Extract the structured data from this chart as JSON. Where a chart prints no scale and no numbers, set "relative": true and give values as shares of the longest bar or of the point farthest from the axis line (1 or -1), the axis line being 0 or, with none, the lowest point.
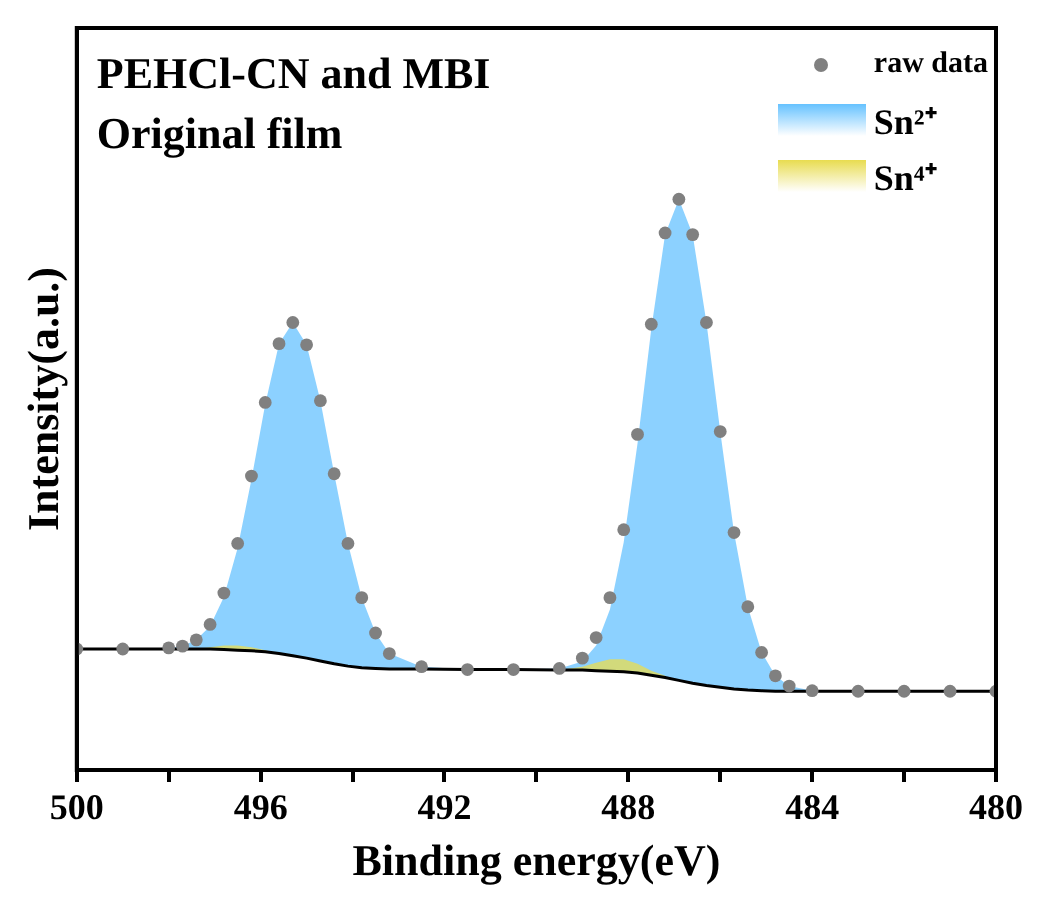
{
  "chart_data": {
    "type": "line",
    "title": "PEHCl-CN and MBI",
    "subtitle": "Original film",
    "xlabel": "Binding energy(eV)",
    "ylabel": "Intensity(a.u.)",
    "relative": true,
    "x": [
      500,
      499,
      498,
      497.7,
      497.4,
      497.1,
      496.8,
      496.5,
      496.2,
      495.9,
      495.6,
      495.3,
      495.0,
      494.7,
      494.4,
      494.1,
      493.8,
      493.5,
      493.2,
      492.5,
      491.5,
      490.5,
      489.5,
      489.0,
      488.7,
      488.4,
      488.1,
      487.8,
      487.5,
      487.2,
      486.9,
      486.6,
      486.3,
      486.0,
      485.7,
      485.4,
      485.1,
      484.8,
      484.5,
      484.0,
      483,
      482,
      481,
      480
    ],
    "xlim": [
      500,
      480
    ],
    "xticks": [
      500,
      {
        "value": 498,
        "label": null
      },
      496,
      {
        "value": 494,
        "label": null
      },
      492,
      {
        "value": 490,
        "label": null
      },
      488,
      {
        "value": 486,
        "label": null
      },
      484,
      {
        "value": 482,
        "label": null
      },
      480
    ],
    "grid": false,
    "legend": "top right",
    "series": [
      {
        "name": "raw data",
        "type": "scatter",
        "color": "#808080",
        "values": [
          0.212,
          0.212,
          0.214,
          0.217,
          0.228,
          0.255,
          0.31,
          0.397,
          0.515,
          0.644,
          0.747,
          0.784,
          0.745,
          0.647,
          0.519,
          0.397,
          0.302,
          0.24,
          0.204,
          0.181,
          0.176,
          0.176,
          0.178,
          0.196,
          0.232,
          0.302,
          0.421,
          0.588,
          0.781,
          0.941,
          1.0,
          0.938,
          0.784,
          0.593,
          0.416,
          0.286,
          0.206,
          0.165,
          0.147,
          0.139,
          0.138,
          0.138,
          0.138,
          0.138
        ]
      },
      {
        "color": "#000000",
        "values": [
          0.212,
          0.212,
          0.212,
          0.212,
          0.212,
          0.212,
          0.211,
          0.21,
          0.209,
          0.207,
          0.204,
          0.2,
          0.196,
          0.191,
          0.186,
          0.182,
          0.179,
          0.178,
          0.177,
          0.177,
          0.176,
          0.176,
          0.175,
          0.175,
          0.174,
          0.173,
          0.172,
          0.17,
          0.166,
          0.162,
          0.157,
          0.152,
          0.148,
          0.145,
          0.142,
          0.14,
          0.139,
          0.138,
          0.138,
          0.138,
          0.138,
          0.138,
          0.138,
          0.138
        ]
      },
      {
        "name": "Sn²⁺",
        "type": "area",
        "color": "#66c2ff",
        "values": [
          0.212,
          0.212,
          0.214,
          0.217,
          0.228,
          0.252,
          0.303,
          0.389,
          0.509,
          0.641,
          0.747,
          0.784,
          0.745,
          0.647,
          0.519,
          0.397,
          0.302,
          0.24,
          0.204,
          0.181,
          0.176,
          0.176,
          0.178,
          0.19,
          0.218,
          0.281,
          0.399,
          0.572,
          0.773,
          0.938,
          1.0,
          0.938,
          0.784,
          0.593,
          0.416,
          0.286,
          0.206,
          0.165,
          0.147,
          0.139,
          0.138,
          0.138,
          0.138,
          0.138
        ]
      },
      {
        "name": "Sn⁴⁺",
        "type": "area",
        "color": "#e8dc50",
        "values": [
          null,
          null,
          null,
          null,
          0.212,
          0.215,
          0.218,
          0.218,
          0.215,
          0.21,
          0.204,
          null,
          null,
          null,
          null,
          null,
          null,
          null,
          null,
          null,
          null,
          null,
          0.175,
          0.181,
          0.188,
          0.194,
          0.194,
          0.186,
          0.174,
          0.165,
          null,
          null,
          null,
          null,
          null,
          null,
          null,
          null,
          null,
          null,
          null,
          null,
          null,
          null
        ]
      }
    ]
  }
}
